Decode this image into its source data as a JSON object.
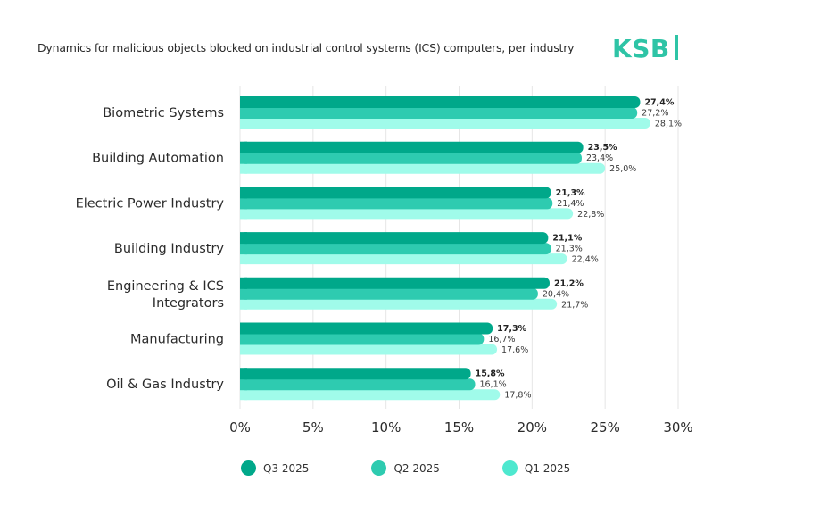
{
  "header": {
    "title": "Dynamics for malicious objects blocked on industrial control systems (ICS) computers, per industry",
    "logo_text": "KSB"
  },
  "colors": {
    "q3": "#00a88a",
    "q2": "#2ecbb0",
    "q1": "#a0fbea",
    "grid": "#e6e6e6"
  },
  "chart_data": {
    "type": "bar",
    "orientation": "horizontal",
    "title": "Dynamics for malicious objects blocked on industrial control systems (ICS) computers, per industry",
    "xlabel": "",
    "ylabel": "",
    "xlim": [
      0,
      30
    ],
    "x_ticks": [
      "0%",
      "5%",
      "10%",
      "15%",
      "20%",
      "25%",
      "30%"
    ],
    "x_tick_values": [
      0,
      5,
      10,
      15,
      20,
      25,
      30
    ],
    "grid": true,
    "legend_position": "bottom-left",
    "categories": [
      [
        "Biometric Systems"
      ],
      [
        "Building Automation"
      ],
      [
        "Electric Power Industry"
      ],
      [
        "Building Industry"
      ],
      [
        "Engineering & ICS",
        "Integrators"
      ],
      [
        "Manufacturing"
      ],
      [
        "Oil & Gas Industry"
      ]
    ],
    "series": [
      {
        "name": "Q3 2025",
        "color_key": "q3",
        "bold_labels": true,
        "values": [
          27.4,
          23.5,
          21.3,
          21.1,
          21.2,
          17.3,
          15.8
        ],
        "labels": [
          "27,4%",
          "23,5%",
          "21,3%",
          "21,1%",
          "21,2%",
          "17,3%",
          "15,8%"
        ]
      },
      {
        "name": "Q2 2025",
        "color_key": "q2",
        "bold_labels": false,
        "values": [
          27.2,
          23.4,
          21.4,
          21.3,
          20.4,
          16.7,
          16.1
        ],
        "labels": [
          "27,2%",
          "23,4%",
          "21,4%",
          "21,3%",
          "20,4%",
          "16,7%",
          "16,1%"
        ]
      },
      {
        "name": "Q1 2025",
        "color_key": "q1",
        "bold_labels": false,
        "values": [
          28.1,
          25.0,
          22.8,
          22.4,
          21.7,
          17.6,
          17.8
        ],
        "labels": [
          "28,1%",
          "25,0%",
          "22,8%",
          "22,4%",
          "21,7%",
          "17,6%",
          "17,8%"
        ]
      }
    ]
  },
  "legend": {
    "items": [
      {
        "label": "Q3 2025",
        "color_key": "q3"
      },
      {
        "label": "Q2 2025",
        "color_key": "q2"
      },
      {
        "label": "Q1 2025",
        "color_key": "q1"
      }
    ]
  }
}
